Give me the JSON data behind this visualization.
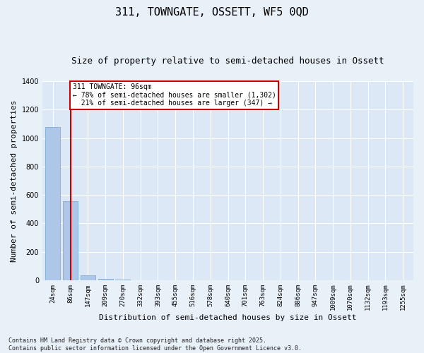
{
  "title": "311, TOWNGATE, OSSETT, WF5 0QD",
  "subtitle": "Size of property relative to semi-detached houses in Ossett",
  "xlabel": "Distribution of semi-detached houses by size in Ossett",
  "ylabel": "Number of semi-detached properties",
  "categories": [
    "24sqm",
    "86sqm",
    "147sqm",
    "209sqm",
    "270sqm",
    "332sqm",
    "393sqm",
    "455sqm",
    "516sqm",
    "578sqm",
    "640sqm",
    "701sqm",
    "763sqm",
    "824sqm",
    "886sqm",
    "947sqm",
    "1009sqm",
    "1070sqm",
    "1132sqm",
    "1193sqm",
    "1255sqm"
  ],
  "values": [
    1075,
    555,
    35,
    10,
    3,
    1,
    0,
    0,
    0,
    0,
    0,
    0,
    0,
    0,
    0,
    0,
    0,
    0,
    0,
    0,
    0
  ],
  "bar_color": "#aec6e8",
  "bar_edge_color": "#7aafd4",
  "vline_x": 1.0,
  "vline_color": "#cc0000",
  "annotation_line1": "311 TOWNGATE: 96sqm",
  "annotation_line2": "← 78% of semi-detached houses are smaller (1,302)",
  "annotation_line3": "  21% of semi-detached houses are larger (347) →",
  "annotation_box_color": "#ffffff",
  "annotation_edge_color": "#cc0000",
  "ylim": [
    0,
    1400
  ],
  "yticks": [
    0,
    200,
    400,
    600,
    800,
    1000,
    1200,
    1400
  ],
  "footnote": "Contains HM Land Registry data © Crown copyright and database right 2025.\nContains public sector information licensed under the Open Government Licence v3.0.",
  "background_color": "#e8f0f8",
  "plot_background_color": "#dce8f5",
  "grid_color": "#ffffff",
  "title_fontsize": 11,
  "subtitle_fontsize": 9,
  "ylabel_fontsize": 8,
  "xlabel_fontsize": 8,
  "tick_fontsize": 6.5,
  "ytick_fontsize": 7,
  "footnote_fontsize": 6,
  "annotation_fontsize": 7
}
